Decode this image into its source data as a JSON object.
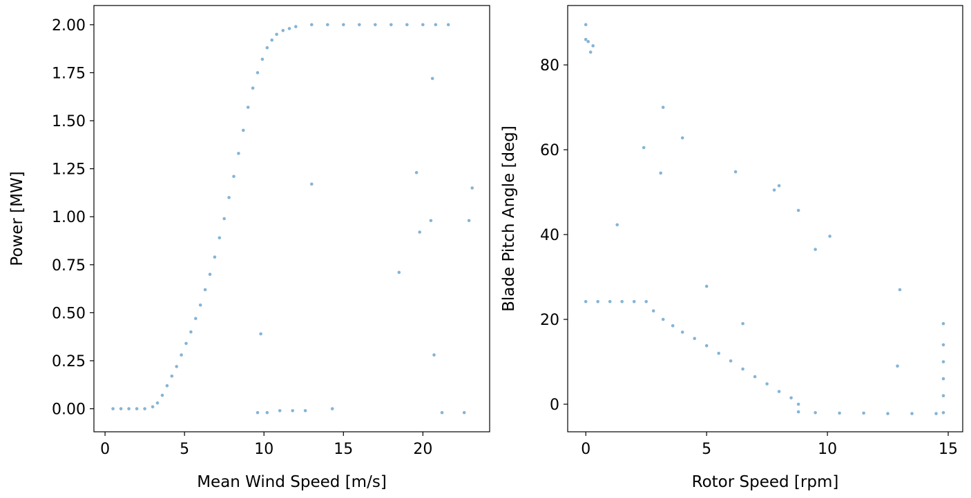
{
  "chart_data": [
    {
      "type": "scatter",
      "xlabel": "Mean Wind Speed [m/s]",
      "ylabel": "Power [MW]",
      "xlim": [
        -0.7,
        24.2
      ],
      "ylim": [
        -0.12,
        2.1
      ],
      "xticks": [
        0,
        5,
        10,
        15,
        20
      ],
      "yticks": [
        0.0,
        0.25,
        0.5,
        0.75,
        1.0,
        1.25,
        1.5,
        1.75,
        2.0
      ],
      "xtick_labels": [
        "0",
        "5",
        "10",
        "15",
        "20"
      ],
      "ytick_labels": [
        "0.00",
        "0.25",
        "0.50",
        "0.75",
        "1.00",
        "1.25",
        "1.50",
        "1.75",
        "2.00"
      ],
      "grid": false,
      "color": "#1f77b4",
      "series": [
        {
          "points": [
            [
              0.5,
              0.0
            ],
            [
              1.0,
              0.0
            ],
            [
              1.5,
              0.0
            ],
            [
              2.0,
              0.0
            ],
            [
              2.5,
              0.0
            ],
            [
              3.0,
              0.01
            ],
            [
              3.3,
              0.03
            ],
            [
              3.6,
              0.07
            ],
            [
              3.9,
              0.12
            ],
            [
              4.2,
              0.17
            ],
            [
              4.5,
              0.22
            ],
            [
              4.8,
              0.28
            ],
            [
              5.1,
              0.34
            ],
            [
              5.4,
              0.4
            ],
            [
              5.7,
              0.47
            ],
            [
              6.0,
              0.54
            ],
            [
              6.3,
              0.62
            ],
            [
              6.6,
              0.7
            ],
            [
              6.9,
              0.79
            ],
            [
              7.2,
              0.89
            ],
            [
              7.5,
              0.99
            ],
            [
              7.8,
              1.1
            ],
            [
              8.1,
              1.21
            ],
            [
              8.4,
              1.33
            ],
            [
              8.7,
              1.45
            ],
            [
              9.0,
              1.57
            ],
            [
              9.3,
              1.67
            ],
            [
              9.6,
              1.75
            ],
            [
              9.9,
              1.82
            ],
            [
              10.2,
              1.88
            ],
            [
              10.5,
              1.92
            ],
            [
              10.8,
              1.95
            ],
            [
              11.2,
              1.97
            ],
            [
              11.6,
              1.98
            ],
            [
              12.0,
              1.99
            ],
            [
              13.0,
              2.0
            ],
            [
              14.0,
              2.0
            ],
            [
              15.0,
              2.0
            ],
            [
              16.0,
              2.0
            ],
            [
              17.0,
              2.0
            ],
            [
              18.0,
              2.0
            ],
            [
              19.0,
              2.0
            ],
            [
              20.0,
              2.0
            ],
            [
              20.8,
              2.0
            ],
            [
              21.6,
              2.0
            ],
            [
              9.6,
              -0.02
            ],
            [
              10.2,
              -0.02
            ],
            [
              11.0,
              -0.01
            ],
            [
              11.8,
              -0.01
            ],
            [
              12.6,
              -0.01
            ],
            [
              14.3,
              0.0
            ],
            [
              13.0,
              1.17
            ],
            [
              9.8,
              0.39
            ],
            [
              18.5,
              0.71
            ],
            [
              19.6,
              1.23
            ],
            [
              19.8,
              0.92
            ],
            [
              20.5,
              0.98
            ],
            [
              20.7,
              0.28
            ],
            [
              20.6,
              1.72
            ],
            [
              21.2,
              -0.02
            ],
            [
              22.6,
              -0.02
            ],
            [
              22.9,
              0.98
            ],
            [
              23.1,
              1.15
            ]
          ]
        }
      ]
    },
    {
      "type": "scatter",
      "xlabel": "Rotor Speed [rpm]",
      "ylabel": "Blade Pitch Angle [deg]",
      "xlim": [
        -0.75,
        15.6
      ],
      "ylim": [
        -6.5,
        94.0
      ],
      "xticks": [
        0,
        5,
        10,
        15
      ],
      "yticks": [
        0,
        20,
        40,
        60,
        80
      ],
      "xtick_labels": [
        "0",
        "5",
        "10",
        "15"
      ],
      "ytick_labels": [
        "0",
        "20",
        "40",
        "60",
        "80"
      ],
      "grid": false,
      "color": "#1f77b4",
      "series": [
        {
          "points": [
            [
              0.0,
              24.2
            ],
            [
              0.5,
              24.2
            ],
            [
              1.0,
              24.2
            ],
            [
              1.5,
              24.2
            ],
            [
              2.0,
              24.2
            ],
            [
              2.5,
              24.2
            ],
            [
              2.8,
              22.0
            ],
            [
              3.2,
              20.0
            ],
            [
              3.6,
              18.5
            ],
            [
              4.0,
              17.0
            ],
            [
              4.5,
              15.5
            ],
            [
              5.0,
              13.8
            ],
            [
              5.5,
              12.0
            ],
            [
              6.0,
              10.2
            ],
            [
              6.5,
              8.3
            ],
            [
              7.0,
              6.5
            ],
            [
              7.5,
              4.8
            ],
            [
              8.0,
              3.0
            ],
            [
              8.5,
              1.5
            ],
            [
              8.8,
              0.0
            ],
            [
              8.8,
              -1.8
            ],
            [
              9.5,
              -2.0
            ],
            [
              10.5,
              -2.1
            ],
            [
              11.5,
              -2.1
            ],
            [
              12.5,
              -2.2
            ],
            [
              13.5,
              -2.2
            ],
            [
              14.5,
              -2.2
            ],
            [
              14.8,
              -2.0
            ],
            [
              14.8,
              2.0
            ],
            [
              14.8,
              6.0
            ],
            [
              14.8,
              10.0
            ],
            [
              14.8,
              14.0
            ],
            [
              14.8,
              19.0
            ],
            [
              0.0,
              89.5
            ],
            [
              0.0,
              86.0
            ],
            [
              0.1,
              85.5
            ],
            [
              0.2,
              83.0
            ],
            [
              0.3,
              84.5
            ],
            [
              1.3,
              42.3
            ],
            [
              2.4,
              60.5
            ],
            [
              3.1,
              54.5
            ],
            [
              3.2,
              70.0
            ],
            [
              4.0,
              62.8
            ],
            [
              5.0,
              27.8
            ],
            [
              6.2,
              54.8
            ],
            [
              6.5,
              19.0
            ],
            [
              7.8,
              50.5
            ],
            [
              8.0,
              51.5
            ],
            [
              8.8,
              45.7
            ],
            [
              9.5,
              36.5
            ],
            [
              10.1,
              39.6
            ],
            [
              12.9,
              9.0
            ],
            [
              13.0,
              27.0
            ]
          ]
        }
      ]
    }
  ]
}
